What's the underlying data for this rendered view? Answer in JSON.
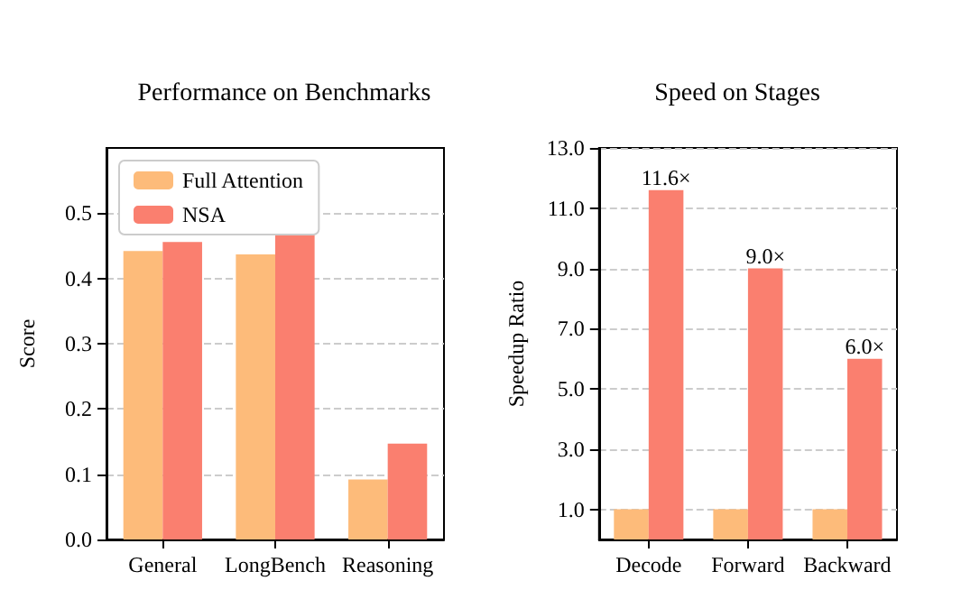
{
  "chart_data": [
    {
      "type": "bar",
      "title": "Performance on Benchmarks",
      "ylabel": "Score",
      "categories": [
        "General",
        "LongBench",
        "Reasoning"
      ],
      "series": [
        {
          "name": "Full Attention",
          "color": "#fdbb7a",
          "values": [
            0.442,
            0.437,
            0.092
          ]
        },
        {
          "name": "NSA",
          "color": "#fa7f6f",
          "values": [
            0.456,
            0.467,
            0.147
          ]
        }
      ],
      "ylim": [
        0,
        0.6
      ],
      "yticks": [
        {
          "value": 0,
          "label": "0.0"
        },
        0.1,
        0.2,
        0.3,
        0.4,
        0.5
      ],
      "grid": "y",
      "legend": "top left"
    },
    {
      "type": "bar",
      "title": "Speed on Stages",
      "ylabel": "Speedup Ratio",
      "categories": [
        "Decode",
        "Forward",
        "Backward"
      ],
      "series": [
        {
          "color": "#fdbb7a",
          "values": [
            1,
            1,
            1
          ]
        },
        {
          "color": "#fa7f6f",
          "values": [
            11.6,
            9,
            6
          ],
          "value_labels": [
            "11.6×",
            "9.0×",
            "6.0×"
          ]
        }
      ],
      "ylim": [
        0,
        13
      ],
      "yticks": [
        {
          "value": 1,
          "label": "1.0"
        },
        {
          "value": 3,
          "label": "3.0"
        },
        {
          "value": 5,
          "label": "5.0"
        },
        {
          "value": 7,
          "label": "7.0"
        },
        {
          "value": 9,
          "label": "9.0"
        },
        {
          "value": 11,
          "label": "11.0"
        },
        {
          "value": 13,
          "label": "13.0"
        }
      ],
      "grid": "y",
      "legend": false
    }
  ]
}
